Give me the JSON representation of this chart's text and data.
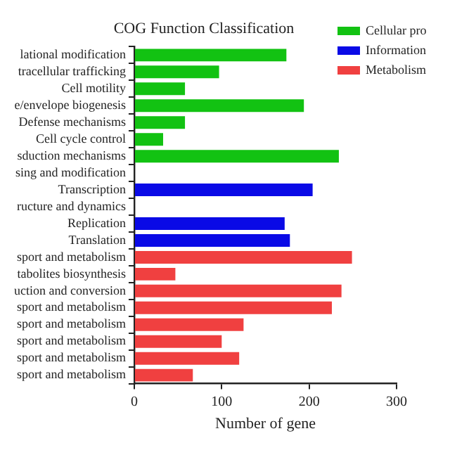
{
  "chart_data": {
    "type": "bar",
    "orientation": "horizontal",
    "title": "COG Function Classification",
    "xlabel": "Number of gene",
    "categories": [
      "lational modification",
      "tracellular trafficking",
      "Cell motility",
      "e/envelope biogenesis",
      "Defense mechanisms",
      "Cell cycle control",
      "sduction mechanisms",
      "sing and modification",
      "Transcription",
      "ructure and dynamics",
      "Replication",
      "Translation",
      "sport and metabolism",
      "tabolites biosynthesis",
      "uction and conversion",
      "sport and metabolism",
      "sport and metabolism",
      "sport and metabolism",
      "sport and metabolism",
      "sport and metabolism"
    ],
    "series": [
      {
        "name": "Cellular pro",
        "color": "#12c212",
        "values": [
          174,
          97,
          58,
          194,
          58,
          33,
          234,
          0,
          null,
          null,
          null,
          null,
          null,
          null,
          null,
          null,
          null,
          null,
          null,
          null
        ]
      },
      {
        "name": "Information",
        "color": "#0a0ae6",
        "values": [
          null,
          null,
          null,
          null,
          null,
          null,
          null,
          null,
          204,
          0,
          172,
          178,
          null,
          null,
          null,
          null,
          null,
          null,
          null,
          null
        ]
      },
      {
        "name": "Metabolism",
        "color": "#f04040",
        "values": [
          null,
          null,
          null,
          null,
          null,
          null,
          null,
          null,
          null,
          null,
          null,
          null,
          249,
          47,
          237,
          226,
          125,
          100,
          120,
          67
        ]
      }
    ],
    "xlim": [
      0,
      300
    ],
    "xticks": [
      0,
      100,
      200,
      300
    ],
    "grid": false,
    "legend": "top right"
  }
}
